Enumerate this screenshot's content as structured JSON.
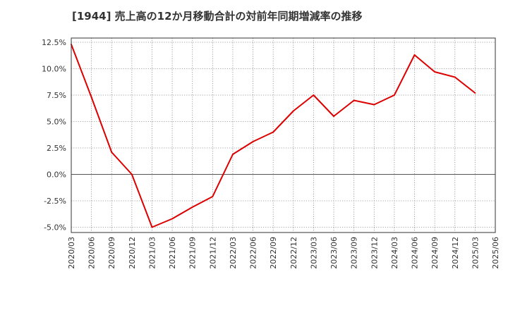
{
  "chart_data": {
    "type": "line",
    "title": "[1944]  売上高の12か月移動合計の対前年同期増減率の推移",
    "xlabel": "",
    "ylabel": "",
    "ylim": [
      -5.5,
      12.9
    ],
    "grid": true,
    "y_ticks": [
      {
        "value": 12.5,
        "label": "12.5%"
      },
      {
        "value": 10.0,
        "label": "10.0%"
      },
      {
        "value": 7.5,
        "label": "7.5%"
      },
      {
        "value": 5.0,
        "label": "5.0%"
      },
      {
        "value": 2.5,
        "label": "2.5%"
      },
      {
        "value": 0.0,
        "label": "0.0%"
      },
      {
        "value": -2.5,
        "label": "-2.5%"
      },
      {
        "value": -5.0,
        "label": "-5.0%"
      }
    ],
    "categories": [
      "2020/03",
      "2020/06",
      "2020/09",
      "2020/12",
      "2021/03",
      "2021/06",
      "2021/09",
      "2021/12",
      "2022/03",
      "2022/06",
      "2022/09",
      "2022/12",
      "2023/03",
      "2023/06",
      "2023/09",
      "2023/12",
      "2024/03",
      "2024/06",
      "2024/09",
      "2024/12",
      "2025/03",
      "2025/06"
    ],
    "series": [
      {
        "name": "売上高の12か月移動合計の対前年同期増減率",
        "color": "#dd0000",
        "values": [
          12.3,
          7.3,
          2.1,
          0.0,
          -5.0,
          -4.2,
          -3.1,
          -2.1,
          1.9,
          3.1,
          4.0,
          6.0,
          7.5,
          5.5,
          7.0,
          6.6,
          7.5,
          11.3,
          9.7,
          9.2,
          7.7,
          null
        ]
      }
    ]
  }
}
